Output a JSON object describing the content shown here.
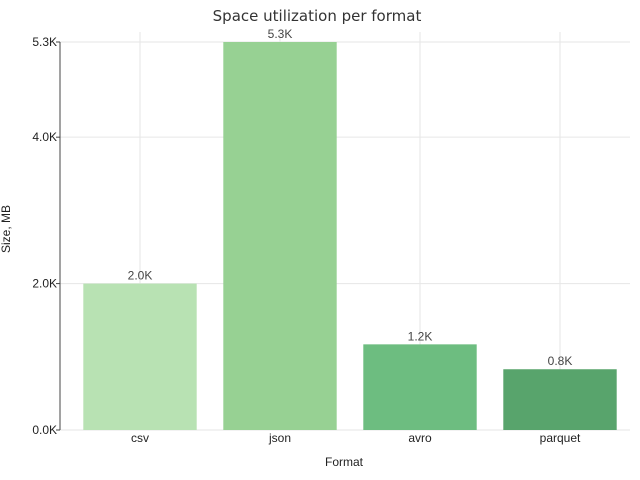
{
  "chart_data": {
    "type": "bar",
    "title": "Space utilization per format",
    "xlabel": "Format",
    "ylabel": "Size, MB",
    "categories": [
      "csv",
      "json",
      "avro",
      "parquet"
    ],
    "values": [
      2000,
      5300,
      1170,
      830
    ],
    "data_labels": [
      "2.0K",
      "5.3K",
      "1.2K",
      "0.8K"
    ],
    "colors": [
      "#b8e2b3",
      "#97d193",
      "#6dbd80",
      "#58a46c"
    ],
    "ylim": [
      0,
      5300
    ],
    "yticks": [
      0,
      2000,
      4000,
      5300
    ],
    "ytick_labels": [
      "0.0K",
      "2.0K",
      "4.0K",
      "5.3K"
    ],
    "grid": true,
    "legend": "none"
  }
}
